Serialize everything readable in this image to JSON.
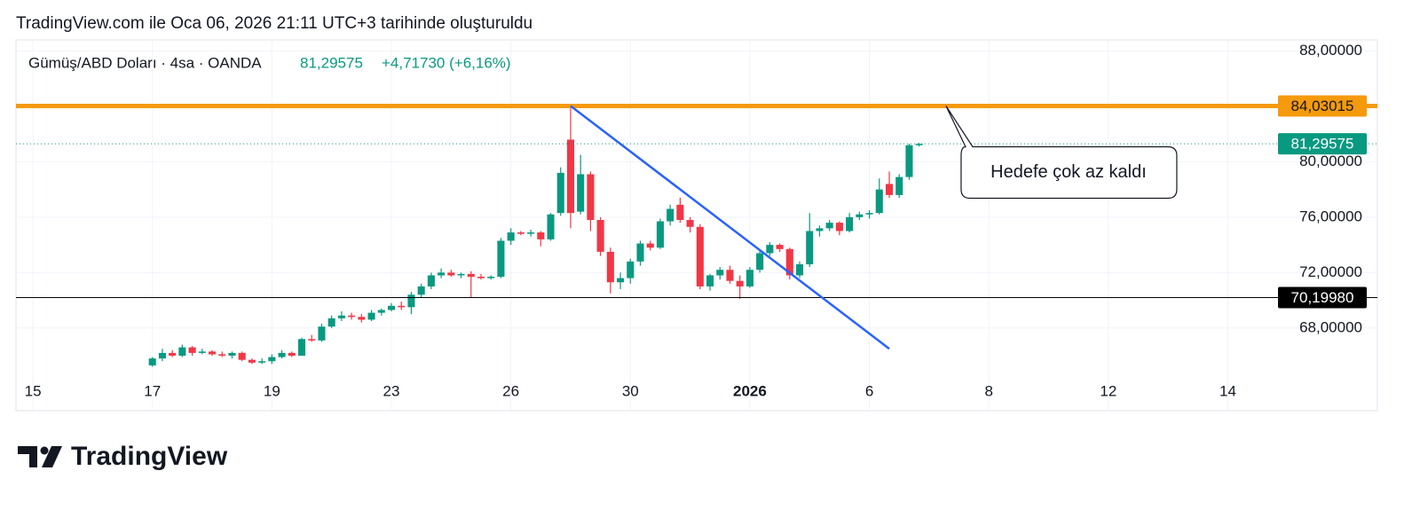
{
  "header": {
    "title": "TradingView.com ile Oca 06, 2026 21:11 UTC+3 tarihinde oluşturuldu"
  },
  "footer": {
    "brand": "TradingView"
  },
  "chart_data": {
    "type": "candlestick",
    "title": "Gümüş/ABD Doları · 4sa · OANDA",
    "last_price": "81,29575",
    "change": "+4,71730 (+6,16%)",
    "up_color": "#089981",
    "down_color": "#f23645",
    "open": [
      65.3,
      65.8,
      66.2,
      66.0,
      66.6,
      66.2,
      66.3,
      66.1,
      66.0,
      66.2,
      65.7,
      65.5,
      65.6,
      65.9,
      66.2,
      66.0,
      67.2,
      67.1,
      68.1,
      68.7,
      68.9,
      68.8,
      68.6,
      69.1,
      69.3,
      69.6,
      69.5,
      70.4,
      71.0,
      71.8,
      72.0,
      71.8,
      71.9,
      71.7,
      71.6,
      71.7,
      74.3,
      74.9,
      74.8,
      74.9,
      74.4,
      76.3,
      81.6,
      76.4,
      79.1,
      75.8,
      73.5,
      71.3,
      71.6,
      72.8,
      74.1,
      73.8,
      75.7,
      76.9,
      75.8,
      75.3,
      71.0,
      71.8,
      72.2,
      71.4,
      71.0,
      72.2,
      73.4,
      74.0,
      73.7,
      71.8,
      72.6,
      75.0,
      75.2,
      75.6,
      75.0,
      76.0,
      76.2,
      76.3,
      78.4,
      77.6,
      78.9,
      81.2
    ],
    "high": [
      65.9,
      66.5,
      66.4,
      66.8,
      66.7,
      66.5,
      66.4,
      66.3,
      66.3,
      66.3,
      65.8,
      65.8,
      66.1,
      66.4,
      66.3,
      67.3,
      67.5,
      68.3,
      68.9,
      69.2,
      69.1,
      69.0,
      69.3,
      69.4,
      69.8,
      69.9,
      70.6,
      71.2,
      72.0,
      72.3,
      72.2,
      72.0,
      72.1,
      71.9,
      71.8,
      74.5,
      75.2,
      75.0,
      75.1,
      75.0,
      76.3,
      79.6,
      84.03015,
      80.5,
      79.3,
      76.0,
      73.8,
      72.0,
      73.0,
      74.3,
      74.3,
      75.9,
      76.9,
      77.4,
      76.0,
      75.5,
      71.9,
      72.4,
      72.5,
      71.8,
      72.4,
      73.6,
      74.2,
      74.1,
      73.8,
      72.8,
      76.3,
      75.4,
      75.8,
      75.7,
      76.3,
      76.4,
      76.5,
      78.8,
      79.3,
      79.1,
      81.3,
      81.35
    ],
    "low": [
      65.2,
      65.6,
      65.9,
      65.9,
      66.0,
      66.1,
      66.0,
      65.9,
      65.8,
      65.6,
      65.4,
      65.4,
      65.4,
      65.8,
      65.9,
      66.0,
      67.0,
      67.0,
      68.0,
      68.5,
      68.6,
      68.4,
      68.5,
      68.9,
      69.2,
      69.3,
      69.0,
      70.2,
      70.8,
      71.6,
      71.7,
      71.6,
      70.2,
      71.5,
      71.5,
      71.6,
      74.0,
      74.7,
      74.6,
      73.9,
      74.3,
      76.1,
      75.2,
      76.2,
      75.0,
      73.2,
      70.5,
      70.8,
      71.2,
      72.5,
      73.6,
      73.7,
      75.4,
      75.6,
      74.9,
      70.8,
      70.7,
      71.5,
      71.2,
      70.1,
      70.9,
      72.0,
      73.2,
      73.5,
      71.5,
      71.6,
      72.4,
      74.6,
      75.0,
      74.7,
      74.9,
      75.8,
      75.9,
      76.2,
      77.4,
      77.4,
      78.7,
      81.1
    ],
    "close": [
      65.8,
      66.2,
      66.0,
      66.6,
      66.2,
      66.3,
      66.1,
      66.0,
      66.2,
      65.7,
      65.5,
      65.6,
      65.9,
      66.2,
      66.0,
      67.2,
      67.1,
      68.1,
      68.7,
      68.9,
      68.8,
      68.6,
      69.1,
      69.3,
      69.6,
      69.5,
      70.4,
      71.0,
      71.8,
      72.0,
      71.8,
      71.9,
      71.7,
      71.6,
      71.7,
      74.3,
      74.9,
      74.8,
      74.9,
      74.4,
      76.2,
      79.2,
      76.3,
      79.1,
      75.8,
      73.5,
      71.3,
      71.6,
      72.8,
      74.1,
      73.8,
      75.7,
      76.6,
      75.8,
      75.3,
      71.0,
      71.8,
      72.2,
      71.4,
      71.0,
      72.2,
      73.4,
      74.0,
      73.7,
      71.8,
      72.6,
      75.0,
      75.2,
      75.6,
      75.0,
      76.0,
      76.2,
      76.3,
      78.0,
      77.6,
      78.9,
      81.2,
      81.29575
    ],
    "xlim": [
      -13.7,
      111.7
    ],
    "xticks": [
      {
        "value": -12,
        "label": "15"
      },
      {
        "value": 0,
        "label": "17"
      },
      {
        "value": 12,
        "label": "19"
      },
      {
        "value": 24,
        "label": "23"
      },
      {
        "value": 36,
        "label": "26"
      },
      {
        "value": 48,
        "label": "30"
      },
      {
        "value": 60,
        "label": "2026",
        "bold": true
      },
      {
        "value": 72,
        "label": "6"
      },
      {
        "value": 84,
        "label": "8"
      },
      {
        "value": 96,
        "label": "12"
      },
      {
        "value": 108,
        "label": "14"
      }
    ],
    "ylim": [
      64.4,
      88.8
    ],
    "yticks": [
      {
        "value": 68,
        "label": "68,00000"
      },
      {
        "value": 72,
        "label": "72,00000"
      },
      {
        "value": 76,
        "label": "76,00000"
      },
      {
        "value": 80,
        "label": "80,00000"
      },
      {
        "value": 88,
        "label": "88,00000"
      }
    ],
    "grid": true,
    "price_lines": [
      {
        "value": 84.03015,
        "label": "84,03015",
        "color": "#f59a0c",
        "style": "solid",
        "width": 5
      },
      {
        "value": 81.29575,
        "label": "81,29575",
        "color": "#089981",
        "style": "dotted",
        "width": 1
      },
      {
        "value": 70.1998,
        "label": "70,19980",
        "color": "#000000",
        "style": "solid",
        "width": 1
      }
    ],
    "trendline": {
      "x": [
        42,
        74
      ],
      "y": [
        84.03015,
        66.5
      ],
      "color": "#2962ff"
    },
    "callout": {
      "text": "Hedefe çok az kaldı",
      "x": 79.7,
      "y": 84.03015
    }
  }
}
